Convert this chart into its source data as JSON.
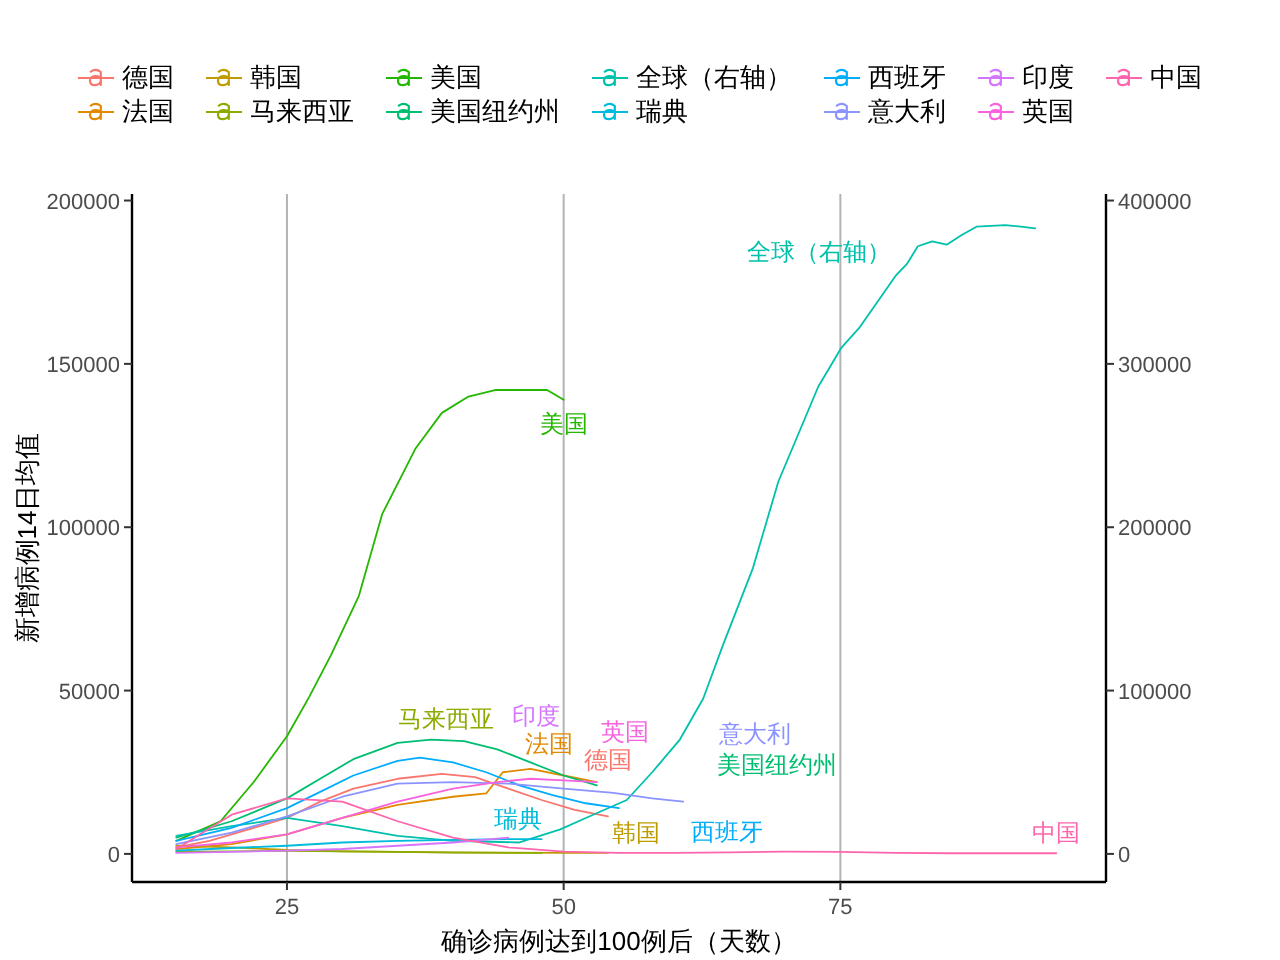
{
  "chart_data": {
    "type": "line",
    "xlabel": "确诊病例达到100例后（天数）",
    "ylabel": "新增病例14日均值",
    "xlim": [
      11,
      99
    ],
    "ylim": [
      -8600,
      202000
    ],
    "y2lim": [
      -17200,
      404000
    ],
    "xticks": [
      25,
      50,
      75
    ],
    "yticks": [
      0,
      50000,
      100000,
      150000,
      200000
    ],
    "y2ticks": [
      0,
      100000,
      200000,
      300000,
      400000
    ],
    "grid": "x",
    "legend": "top",
    "series": [
      {
        "name": "德国",
        "color": "#f8766d",
        "x": [
          15,
          18,
          22,
          25,
          28,
          31,
          35,
          39,
          42,
          45,
          48,
          51,
          54
        ],
        "values": [
          2000,
          4000,
          8000,
          11000,
          16000,
          20000,
          23000,
          24500,
          23500,
          20000,
          16500,
          13500,
          11500
        ]
      },
      {
        "name": "法国",
        "color": "#e18a00",
        "x": [
          15,
          20,
          25,
          30,
          35,
          40,
          43,
          44.5,
          47,
          50,
          53
        ],
        "values": [
          1500,
          3000,
          6000,
          11000,
          15000,
          17500,
          18500,
          25000,
          26000,
          24000,
          22000
        ]
      },
      {
        "name": "韩国",
        "color": "#be9c00",
        "x": [
          15,
          20,
          25,
          30,
          35,
          40,
          45,
          50,
          54
        ],
        "values": [
          2500,
          2000,
          1200,
          800,
          600,
          500,
          400,
          300,
          300
        ]
      },
      {
        "name": "马来西亚",
        "color": "#8cab00",
        "x": [
          15,
          20,
          25,
          30,
          35,
          40,
          45,
          48
        ],
        "values": [
          600,
          800,
          900,
          800,
          600,
          400,
          300,
          300
        ]
      },
      {
        "name": "美国",
        "color": "#24b700",
        "x": [
          15,
          19,
          22,
          25,
          27,
          29,
          31.5,
          33.6,
          36.6,
          39,
          41.4,
          43.8,
          46.7,
          48.5,
          50
        ],
        "values": [
          4000,
          10000,
          22000,
          36000,
          48000,
          61000,
          79000,
          104000,
          124000,
          135000,
          140000,
          142000,
          142000,
          142000,
          139000
        ]
      },
      {
        "name": "美国纽约州",
        "color": "#00be70",
        "x": [
          15,
          20,
          25,
          28,
          31,
          35,
          38,
          41,
          44,
          47,
          50,
          53
        ],
        "values": [
          5000,
          10000,
          17000,
          23000,
          29000,
          34000,
          35000,
          34500,
          32000,
          28000,
          24000,
          21000
        ]
      },
      {
        "name": "全球（右轴）",
        "color": "#00c1ab",
        "axis": "y2",
        "x": [
          15,
          20,
          25,
          30,
          35,
          40,
          46,
          49.7,
          52,
          55.7,
          58,
          60.5,
          62.6,
          64.4,
          67.1,
          69.4,
          73,
          75.1,
          76.7,
          80,
          81,
          82,
          83.3,
          84.6,
          86,
          87.3,
          89.9,
          91.3,
          92.6
        ],
        "values": [
          11000,
          17000,
          22000,
          17000,
          11000,
          8000,
          7000,
          15000,
          22000,
          33000,
          50000,
          70000,
          95000,
          128000,
          175000,
          228000,
          286000,
          310000,
          322000,
          354000,
          361000,
          372000,
          375000,
          373000,
          379000,
          384000,
          385000,
          384000,
          383000
        ]
      },
      {
        "name": "瑞典",
        "color": "#00bbda",
        "x": [
          15,
          20,
          25,
          30,
          35,
          40,
          45,
          48
        ],
        "values": [
          1000,
          1800,
          2500,
          3500,
          4000,
          4300,
          4500,
          4500
        ]
      },
      {
        "name": "西班牙",
        "color": "#00acfc",
        "x": [
          15,
          20,
          25,
          28,
          31,
          35,
          37,
          40,
          43,
          46,
          49,
          52,
          55
        ],
        "values": [
          4000,
          8000,
          14000,
          19000,
          24000,
          28500,
          29500,
          28000,
          25000,
          21000,
          18000,
          15500,
          14000
        ]
      },
      {
        "name": "意大利",
        "color": "#8b93ff",
        "x": [
          15,
          20,
          25,
          30,
          35,
          40,
          45,
          50,
          54.5,
          58,
          60.8
        ],
        "values": [
          3000,
          6500,
          11500,
          17500,
          21500,
          22000,
          21500,
          20000,
          18700,
          17000,
          16000
        ]
      },
      {
        "name": "印度",
        "color": "#d575fe",
        "x": [
          15,
          20,
          25,
          30,
          35,
          40,
          45
        ],
        "values": [
          300,
          600,
          1000,
          1500,
          2500,
          3500,
          5000
        ]
      },
      {
        "name": "英国",
        "color": "#f962dd",
        "x": [
          15,
          20,
          25,
          30,
          35,
          40,
          44,
          47,
          50,
          53
        ],
        "values": [
          2000,
          3500,
          6000,
          11000,
          16000,
          20000,
          22000,
          23000,
          22500,
          22000
        ]
      },
      {
        "name": "中国",
        "color": "#ff65ac",
        "x": [
          15,
          20,
          25,
          30,
          35,
          40,
          45,
          50,
          55,
          60,
          65,
          70,
          75,
          80,
          85,
          90,
          94.5
        ],
        "values": [
          1500,
          12000,
          17000,
          16000,
          10000,
          5000,
          2000,
          700,
          300,
          300,
          500,
          700,
          600,
          300,
          200,
          200,
          200
        ]
      }
    ]
  }
}
